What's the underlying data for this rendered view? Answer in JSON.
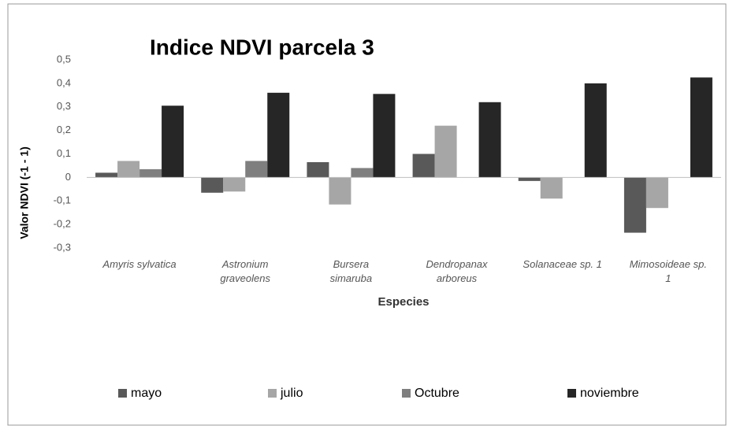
{
  "chart_data": {
    "type": "bar",
    "title": "Indice NDVI parcela 3",
    "xlabel": "Especies",
    "ylabel": "Valor NDVI (-1  -  1)",
    "categories": [
      "Amyris sylvatica",
      "Astronium\ngraveolens",
      "Bursera\nsimaruba",
      "Dendropanax\narboreus",
      "Solanaceae sp. 1",
      "Mimosoideae sp.\n1"
    ],
    "series": [
      {
        "name": "mayo",
        "color": "#595959",
        "values": [
          0.02,
          -0.065,
          0.065,
          0.1,
          -0.015,
          -0.235
        ]
      },
      {
        "name": "julio",
        "color": "#a6a6a6",
        "values": [
          0.07,
          -0.06,
          -0.115,
          0.22,
          -0.09,
          -0.13
        ]
      },
      {
        "name": "Octubre",
        "color": "#7f7f7f",
        "values": [
          0.035,
          0.07,
          0.04,
          null,
          null,
          null
        ]
      },
      {
        "name": "noviembre",
        "color": "#262626",
        "values": [
          0.305,
          0.36,
          0.355,
          0.32,
          0.4,
          0.425
        ]
      }
    ],
    "ylim": [
      -0.3,
      0.5
    ],
    "yticks": [
      {
        "value": -0.3,
        "label": "-0,3"
      },
      {
        "value": -0.2,
        "label": "-0,2"
      },
      {
        "value": -0.1,
        "label": "-0,1"
      },
      0,
      {
        "value": 0.1,
        "label": "0,1"
      },
      {
        "value": 0.2,
        "label": "0,2"
      },
      {
        "value": 0.3,
        "label": "0,3"
      },
      {
        "value": 0.4,
        "label": "0,4"
      },
      {
        "value": 0.5,
        "label": "0,5"
      }
    ],
    "grid": false,
    "legend": "bottom"
  }
}
